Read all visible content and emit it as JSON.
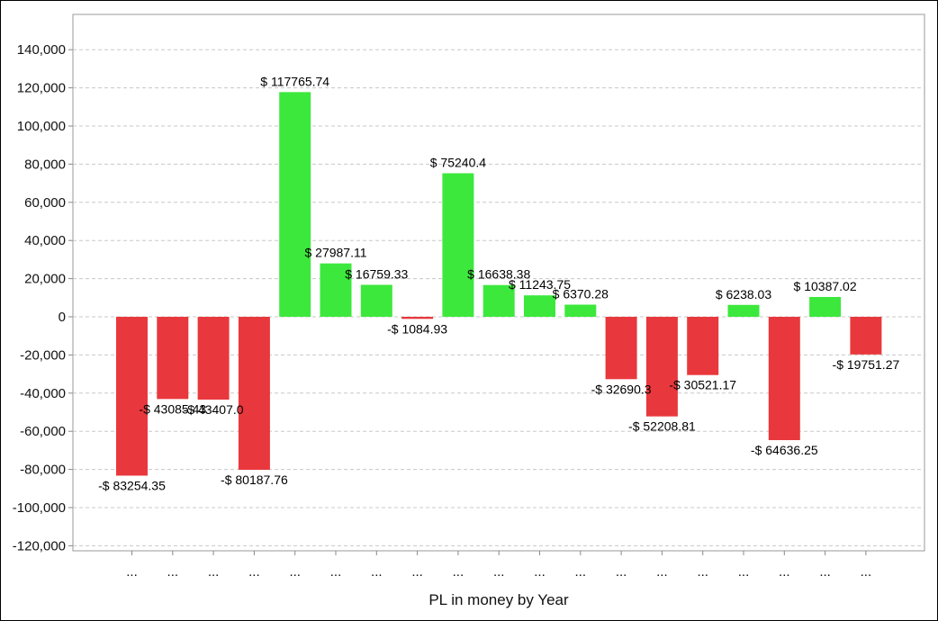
{
  "chart_data": {
    "type": "bar",
    "title": "",
    "xlabel": "PL in money by Year",
    "ylabel": "",
    "ylim": [
      -125000,
      150000
    ],
    "yticks": [
      -120000,
      -100000,
      -80000,
      -60000,
      -40000,
      -20000,
      0,
      20000,
      40000,
      60000,
      80000,
      100000,
      120000,
      140000
    ],
    "ytick_labels": [
      "-120,000",
      "-100,000",
      "-80,000",
      "-60,000",
      "-40,000",
      "-20,000",
      "0",
      "20,000",
      "40,000",
      "60,000",
      "80,000",
      "100,000",
      "120,000",
      "140,000"
    ],
    "grid": true,
    "categories": [
      "...",
      "...",
      "...",
      "...",
      "...",
      "...",
      "...",
      "...",
      "...",
      "...",
      "...",
      "...",
      "...",
      "...",
      "...",
      "...",
      "...",
      "...",
      "..."
    ],
    "values": [
      -83254.35,
      -43085.43,
      -43407.0,
      -80187.76,
      117765.74,
      27987.11,
      16759.33,
      -1084.93,
      75240.4,
      16638.38,
      11243.75,
      6370.28,
      -32690.3,
      -52208.81,
      -30521.17,
      6238.03,
      -64636.25,
      10387.02,
      -19751.27
    ],
    "data_labels": [
      "-$ 83254.35",
      "-$ 43085.43",
      "-$ 43407.0",
      "-$ 80187.76",
      "$ 117765.74",
      "$ 27987.11",
      "$ 16759.33",
      "-$ 1084.93",
      "$ 75240.4",
      "$ 16638.38",
      "$ 11243.75",
      "$ 6370.28",
      "-$ 32690.3",
      "-$ 52208.81",
      "-$ 30521.17",
      "$ 6238.03",
      "-$ 64636.25",
      "$ 10387.02",
      "-$ 19751.27"
    ],
    "colors": {
      "positive": "#3de83d",
      "negative": "#e8383d",
      "grid": "#c8c8c8",
      "axis": "#888888"
    }
  }
}
